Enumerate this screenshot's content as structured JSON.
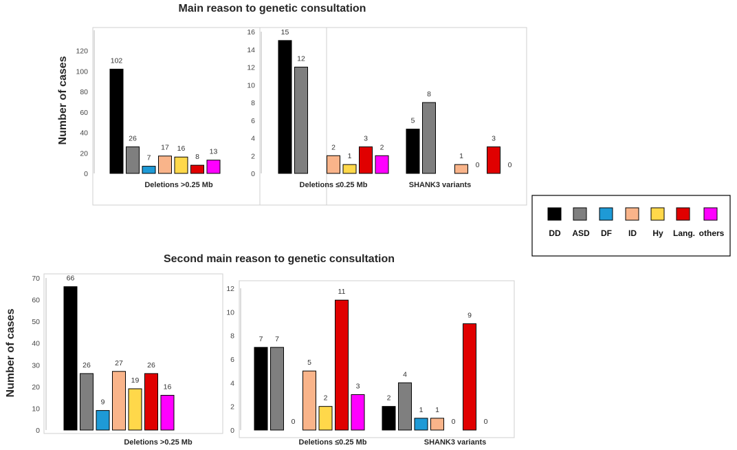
{
  "colors": {
    "DD": "#000000",
    "ASD": "#7f7f7f",
    "DF": "#1e9ad6",
    "ID": "#f9b48a",
    "Hy": "#ffd84a",
    "Lang.": "#e00000",
    "others": "#ff00ff"
  },
  "legend": {
    "items": [
      {
        "name": "DD",
        "color": "#000000"
      },
      {
        "name": "ASD",
        "color": "#7f7f7f"
      },
      {
        "name": "DF",
        "color": "#1e9ad6"
      },
      {
        "name": "ID",
        "color": "#f9b48a"
      },
      {
        "name": "Hy",
        "color": "#ffd84a"
      },
      {
        "name": "Lang.",
        "color": "#e00000"
      },
      {
        "name": "others",
        "color": "#ff00ff"
      }
    ]
  },
  "chart_data": [
    {
      "id": "main-large",
      "type": "bar",
      "title": "Main reason to genetic consultation",
      "ylabel": "Number of cases",
      "ylim": [
        0,
        140
      ],
      "yticks": [
        0,
        20,
        40,
        60,
        80,
        100,
        120
      ],
      "categories": [
        "Deletions >0.25 Mb"
      ],
      "series": [
        {
          "name": "DD",
          "values": [
            102
          ]
        },
        {
          "name": "ASD",
          "values": [
            26
          ]
        },
        {
          "name": "DF",
          "values": [
            7
          ]
        },
        {
          "name": "ID",
          "values": [
            17
          ]
        },
        {
          "name": "Hy",
          "values": [
            16
          ]
        },
        {
          "name": "Lang.",
          "values": [
            8
          ]
        },
        {
          "name": "others",
          "values": [
            13
          ]
        }
      ]
    },
    {
      "id": "main-small",
      "type": "bar",
      "title": "",
      "ylabel": "",
      "ylim": [
        0,
        16
      ],
      "yticks": [
        0,
        2,
        4,
        6,
        8,
        10,
        12,
        14,
        16
      ],
      "categories": [
        "Deletions ≤0.25 Mb",
        "SHANK3 variants"
      ],
      "series": [
        {
          "name": "DD",
          "values": [
            15,
            5
          ]
        },
        {
          "name": "ASD",
          "values": [
            12,
            8
          ]
        },
        {
          "name": "DF",
          "values": [
            null,
            null
          ]
        },
        {
          "name": "ID",
          "values": [
            2,
            1
          ]
        },
        {
          "name": "Hy",
          "values": [
            1,
            0
          ]
        },
        {
          "name": "Lang.",
          "values": [
            3,
            3
          ]
        },
        {
          "name": "others",
          "values": [
            2,
            0
          ]
        }
      ]
    },
    {
      "id": "second-large",
      "type": "bar",
      "title": "Second main reason to genetic consultation",
      "ylabel": "Number of cases",
      "ylim": [
        0,
        70
      ],
      "yticks": [
        0,
        10,
        20,
        30,
        40,
        50,
        60,
        70
      ],
      "categories": [
        "Deletions >0.25 Mb"
      ],
      "series": [
        {
          "name": "DD",
          "values": [
            66
          ]
        },
        {
          "name": "ASD",
          "values": [
            26
          ]
        },
        {
          "name": "DF",
          "values": [
            9
          ]
        },
        {
          "name": "ID",
          "values": [
            27
          ]
        },
        {
          "name": "Hy",
          "values": [
            19
          ]
        },
        {
          "name": "Lang.",
          "values": [
            26
          ]
        },
        {
          "name": "others",
          "values": [
            16
          ]
        }
      ]
    },
    {
      "id": "second-small",
      "type": "bar",
      "title": "",
      "ylabel": "",
      "ylim": [
        0,
        12
      ],
      "yticks": [
        0,
        2,
        4,
        6,
        8,
        10,
        12
      ],
      "categories": [
        "Deletions ≤0.25 Mb",
        "SHANK3 variants"
      ],
      "series": [
        {
          "name": "DD",
          "values": [
            7,
            2
          ]
        },
        {
          "name": "ASD",
          "values": [
            7,
            4
          ]
        },
        {
          "name": "DF",
          "values": [
            0,
            1
          ]
        },
        {
          "name": "ID",
          "values": [
            5,
            1
          ]
        },
        {
          "name": "Hy",
          "values": [
            2,
            0
          ]
        },
        {
          "name": "Lang.",
          "values": [
            11,
            9
          ]
        },
        {
          "name": "others",
          "values": [
            3,
            0
          ]
        }
      ]
    }
  ]
}
